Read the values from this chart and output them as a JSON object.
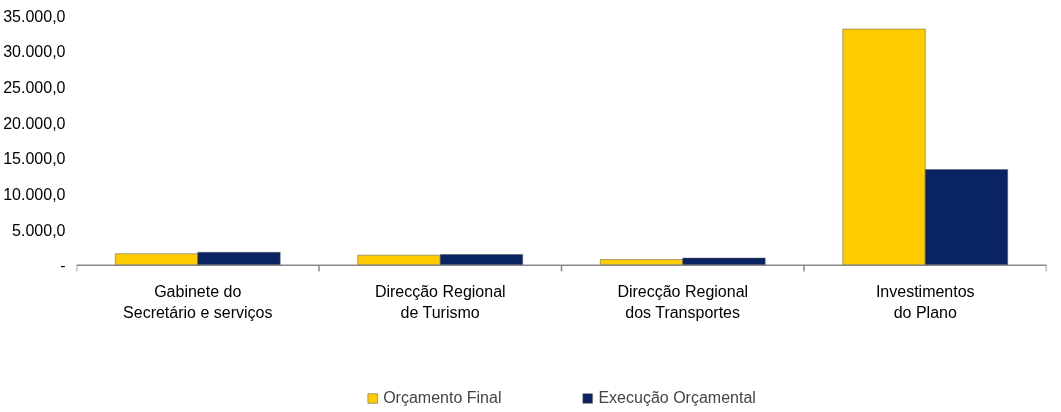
{
  "chart_data": {
    "type": "bar",
    "categories": [
      "Gabinete do Secretário e serviços",
      "Direcção Regional de Turismo",
      "Direcção Regional dos Transportes",
      "Investimentos do Plano"
    ],
    "series": [
      {
        "name": "Orçamento Final",
        "color": "#ffcc00",
        "values": [
          1600,
          1400,
          800,
          33100
        ]
      },
      {
        "name": "Execução Orçamental",
        "color": "#0a2463",
        "values": [
          1800,
          1500,
          1000,
          13400
        ]
      }
    ],
    "ylim": [
      0,
      35000
    ],
    "yticks": [
      {
        "value": 0,
        "label": "-"
      },
      {
        "value": 5000,
        "label": "5.000,0"
      },
      {
        "value": 10000,
        "label": "10.000,0"
      },
      {
        "value": 15000,
        "label": "15.000,0"
      },
      {
        "value": 20000,
        "label": "20.000,0"
      },
      {
        "value": 25000,
        "label": "25.000,0"
      },
      {
        "value": 30000,
        "label": "30.000,0"
      },
      {
        "value": 35000,
        "label": "35.000,0"
      }
    ],
    "grid": false,
    "legend": "bottom"
  }
}
